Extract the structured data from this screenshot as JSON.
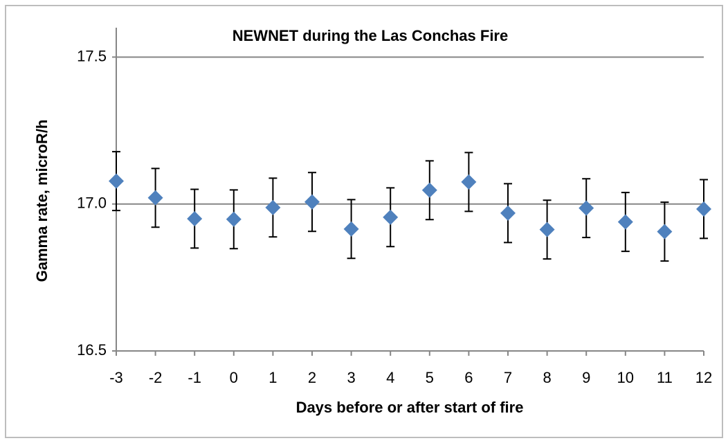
{
  "chart_data": {
    "type": "scatter",
    "title": "NEWNET during the Las Conchas Fire",
    "x_label": "Days before or after start of fire",
    "y_label": "Gamma rate, microR/h",
    "x": [
      -3,
      -2,
      -1,
      0,
      1,
      2,
      3,
      4,
      5,
      6,
      7,
      8,
      9,
      10,
      11,
      12
    ],
    "values": [
      17.078,
      17.021,
      16.95,
      16.948,
      16.988,
      17.007,
      16.915,
      16.955,
      17.047,
      17.075,
      16.969,
      16.913,
      16.986,
      16.939,
      16.906,
      16.983
    ],
    "errors": [
      0.1,
      0.1,
      0.1,
      0.1,
      0.1,
      0.1,
      0.1,
      0.1,
      0.1,
      0.1,
      0.1,
      0.1,
      0.1,
      0.1,
      0.1,
      0.1
    ],
    "color": "#4f81bd",
    "xlim": [
      -3,
      12
    ],
    "xticks": [
      -3,
      -2,
      -1,
      0,
      1,
      2,
      3,
      4,
      5,
      6,
      7,
      8,
      9,
      10,
      11,
      12
    ],
    "ylim": [
      16.5,
      17.6
    ],
    "yticks": [
      16.5,
      {
        "value": 17,
        "label": "17.0"
      },
      17.5
    ],
    "grid": true
  }
}
